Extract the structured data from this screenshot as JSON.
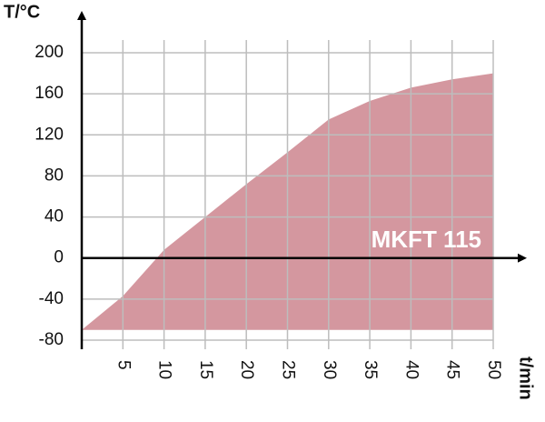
{
  "chart_data": {
    "type": "area",
    "y_label": "T/°C",
    "x_label": "t/min",
    "annotation": "MKFT 115",
    "x": [
      0,
      5,
      10,
      15,
      20,
      25,
      30,
      35,
      40,
      45,
      50
    ],
    "values": [
      -70,
      -37,
      8,
      40,
      72,
      103,
      135,
      153,
      166,
      174,
      180
    ],
    "color": "#d4979f",
    "xlim": [
      0,
      50
    ],
    "ylim": [
      -80,
      200
    ],
    "xticks": [
      5,
      10,
      15,
      20,
      25,
      30,
      35,
      40,
      45,
      50
    ],
    "yticks": [
      -80,
      -40,
      0,
      40,
      80,
      120,
      160,
      200
    ],
    "grid": true
  }
}
